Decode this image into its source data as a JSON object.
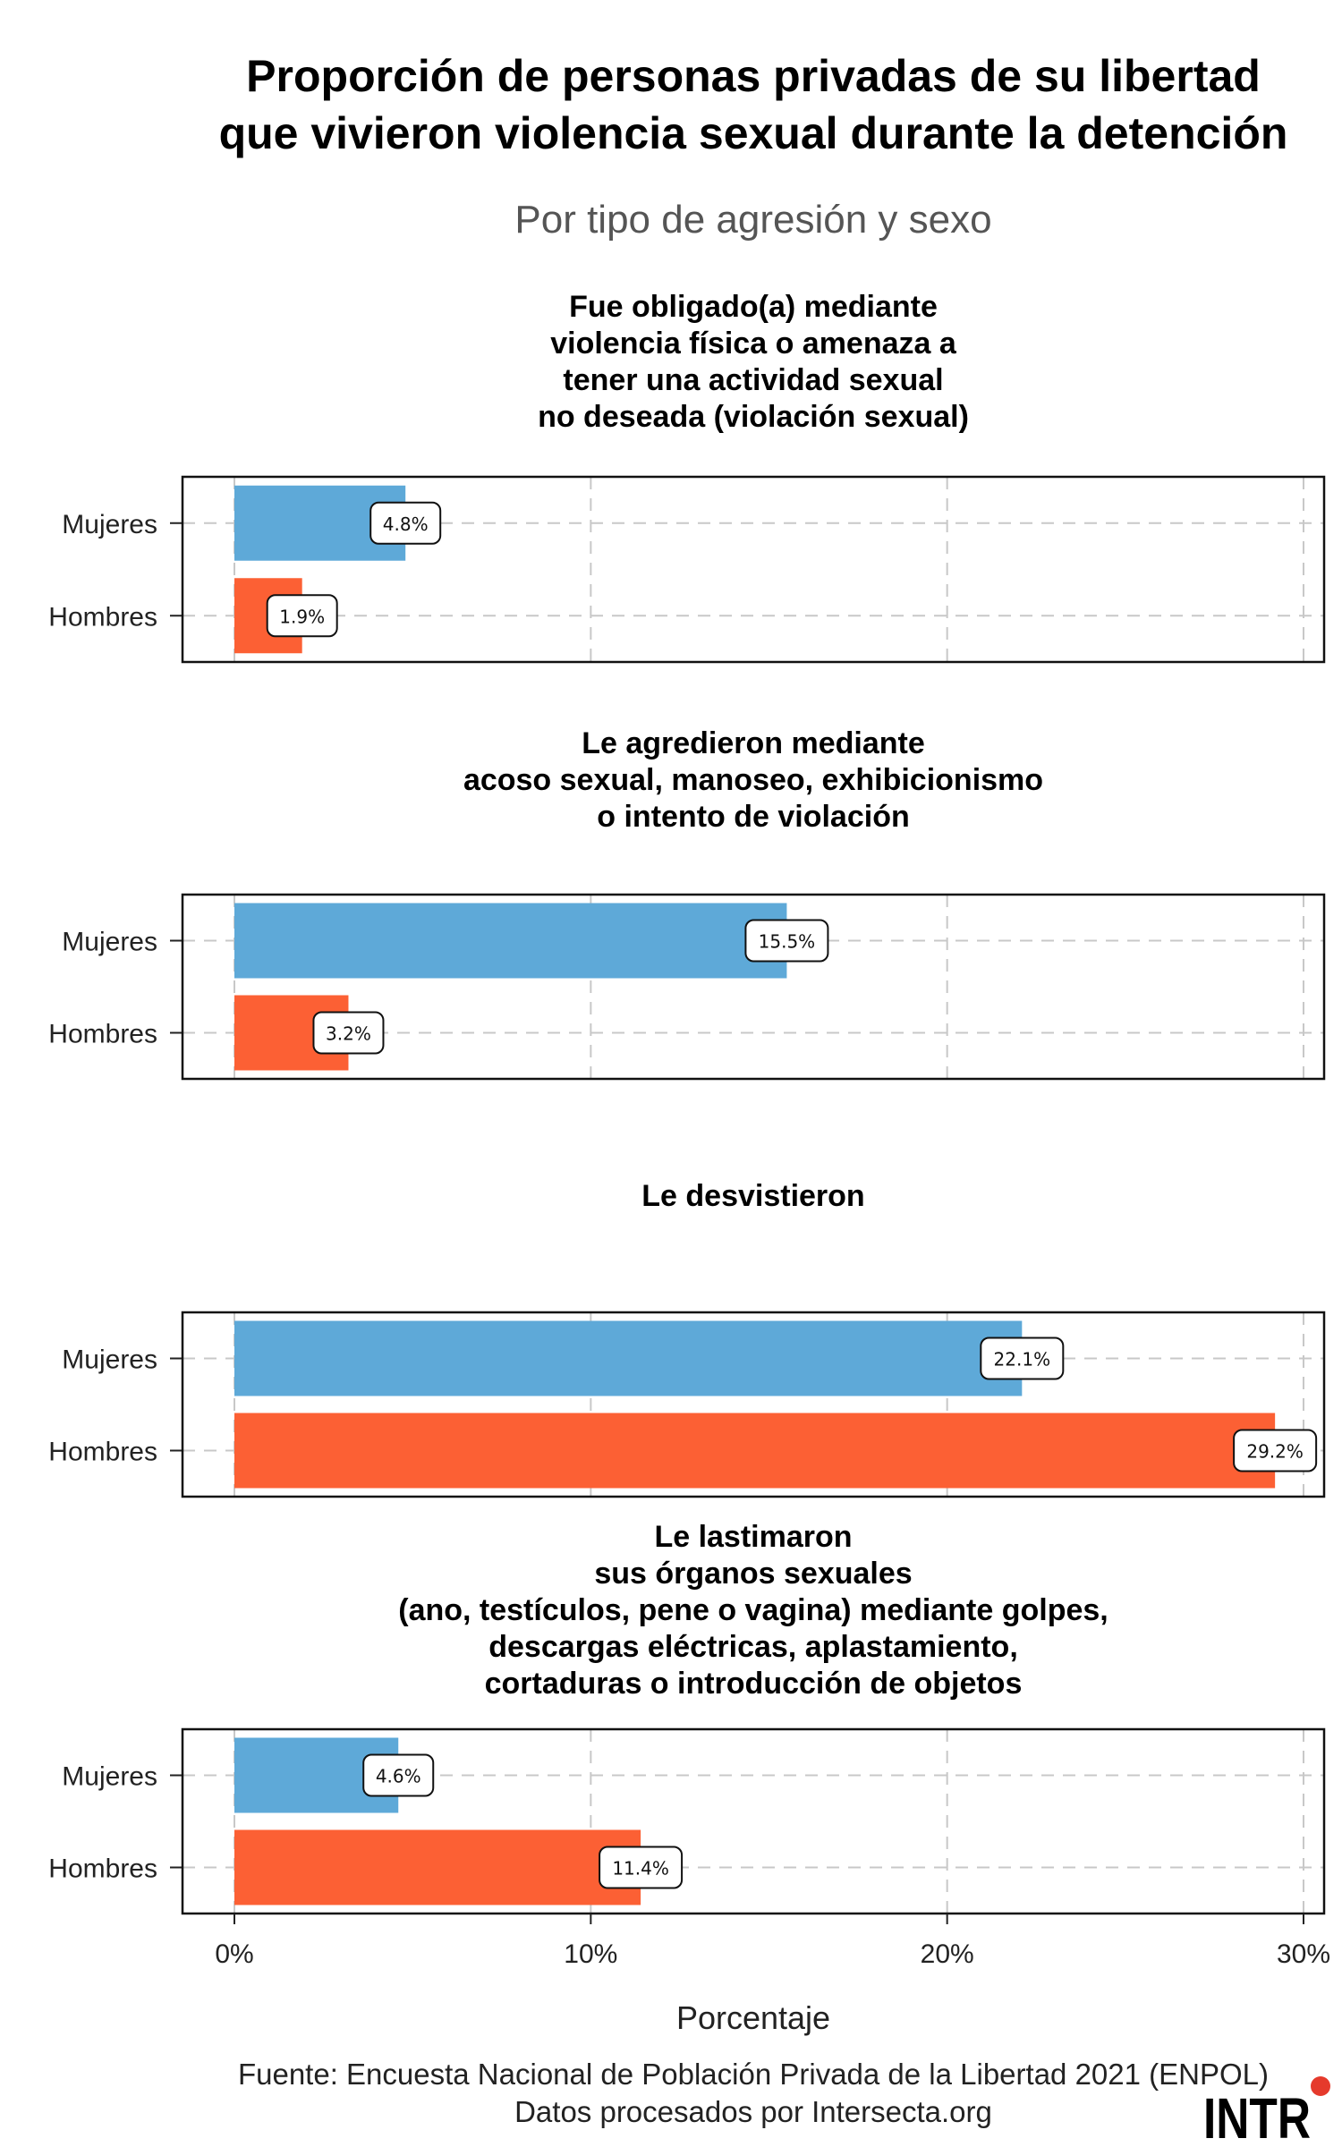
{
  "title_lines": [
    "Proporción de personas privadas de su libertad",
    "que vivieron violencia sexual durante la detención"
  ],
  "subtitle": "Por tipo de agresión y sexo",
  "source_lines": [
    "Fuente: Encuesta Nacional de Población Privada de la Libertad 2021 (ENPOL)",
    "Datos procesados por Intersecta.org"
  ],
  "logo_text": "INTR",
  "colors": {
    "Mujeres": "#5ea9d8",
    "Hombres": "#fc6034",
    "grid": "#c8c8c8"
  },
  "chart_data": {
    "type": "bar",
    "orientation": "horizontal",
    "xlabel": "Porcentaje",
    "xlim": [
      0,
      30
    ],
    "xticks": [
      0,
      10,
      20,
      30
    ],
    "xtick_labels": [
      "0%",
      "10%",
      "20%",
      "30%"
    ],
    "grid": true,
    "categories": [
      "Mujeres",
      "Hombres"
    ],
    "panels": [
      {
        "title_lines": [
          "Fue obligado(a) mediante",
          "violencia física o amenaza a",
          "tener una actividad sexual",
          "no deseada (violación sexual)"
        ],
        "values": [
          4.8,
          1.9
        ],
        "labels": [
          "4.8%",
          "1.9%"
        ]
      },
      {
        "title_lines": [
          "Le agredieron mediante",
          "acoso sexual, manoseo, exhibicionismo",
          "o intento de violación"
        ],
        "values": [
          15.5,
          3.2
        ],
        "labels": [
          "15.5%",
          "3.2%"
        ]
      },
      {
        "title_lines": [
          "Le desvistieron"
        ],
        "values": [
          22.1,
          29.2
        ],
        "labels": [
          "22.1%",
          "29.2%"
        ]
      },
      {
        "title_lines": [
          "Le lastimaron",
          "sus órganos sexuales",
          "(ano, testículos, pene o vagina) mediante golpes,",
          "descargas eléctricas, aplastamiento,",
          "cortaduras o introducción de objetos"
        ],
        "values": [
          4.6,
          11.4
        ],
        "labels": [
          "4.6%",
          "11.4%"
        ]
      }
    ]
  }
}
